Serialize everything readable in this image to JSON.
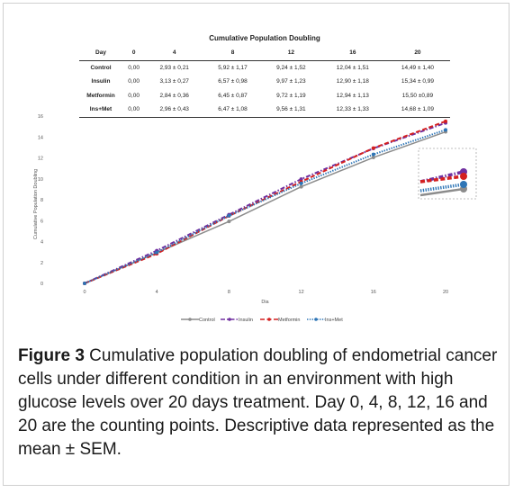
{
  "table": {
    "title": "Cumulative Population Doubling",
    "headers": [
      "Day",
      "0",
      "4",
      "8",
      "12",
      "16",
      "20"
    ],
    "rows": [
      {
        "label": "Control",
        "cells": [
          "0,00",
          "2,93 ± 0,21",
          "5,92 ± 1,17",
          "9,24 ± 1,52",
          "12,04 ± 1,51",
          "14,49 ± 1,40"
        ]
      },
      {
        "label": "Insulin",
        "cells": [
          "0,00",
          "3,13 ± 0,27",
          "6,57 ± 0,98",
          "9,97 ± 1,23",
          "12,90 ± 1,18",
          "15,34 ± 0,99"
        ]
      },
      {
        "label": "Metformin",
        "cells": [
          "0,00",
          "2,84 ± 0,36",
          "6,45 ± 0,87",
          "9,72 ± 1,19",
          "12,94 ± 1,13",
          "15,50 ±0,89"
        ]
      },
      {
        "label": "Ins+Met",
        "cells": [
          "0,00",
          "2,96 ± 0,43",
          "6,47 ± 1,08",
          "9,56 ± 1,31",
          "12,33 ± 1,33",
          "14,68 ± 1,09"
        ]
      }
    ]
  },
  "chart_data": {
    "type": "line",
    "x": [
      0,
      4,
      8,
      12,
      16,
      20
    ],
    "xticks": [
      "0",
      "4",
      "8",
      "12",
      "16",
      "20"
    ],
    "yticks": [
      "0",
      "2",
      "4",
      "6",
      "8",
      "10",
      "12",
      "14",
      "16"
    ],
    "xlabel": "Dia",
    "ylabel": "Cumulative Population Doubling",
    "xlim": [
      0,
      20
    ],
    "ylim": [
      0,
      16
    ],
    "legend_position": "bottom",
    "series": [
      {
        "name": "Control",
        "values": [
          0,
          2.93,
          5.92,
          9.24,
          12.04,
          14.49
        ],
        "color": "#8c8c8c",
        "style": "solid"
      },
      {
        "name": "Insulin",
        "values": [
          0,
          3.13,
          6.57,
          9.97,
          12.9,
          15.34
        ],
        "color": "#7030a0",
        "style": "dashdot"
      },
      {
        "name": "Metformin",
        "values": [
          0,
          2.84,
          6.45,
          9.72,
          12.94,
          15.5
        ],
        "color": "#d42020",
        "style": "dash"
      },
      {
        "name": "Ins+Met",
        "values": [
          0,
          2.96,
          6.47,
          9.56,
          12.33,
          14.68
        ],
        "color": "#2e75b6",
        "style": "dot"
      }
    ]
  },
  "caption": {
    "label": "Figure 3",
    "text": " Cumulative population doubling of endometrial cancer cells under different condition in an environment with high glucose levels over 20 days treatment. Day 0, 4, 8, 12, 16 and 20 are the counting points. Descriptive data represented as the mean ± SEM."
  }
}
